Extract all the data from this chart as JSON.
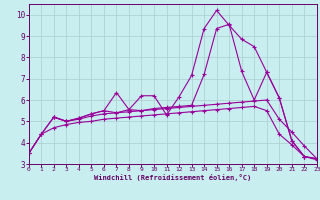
{
  "xlabel": "Windchill (Refroidissement éolien,°C)",
  "bg_color": "#c8eef0",
  "line_color": "#990099",
  "grid_color": "#aacccc",
  "axis_color": "#660066",
  "xlim": [
    0,
    23
  ],
  "ylim": [
    3,
    10.5
  ],
  "xticks": [
    0,
    1,
    2,
    3,
    4,
    5,
    6,
    7,
    8,
    9,
    10,
    11,
    12,
    13,
    14,
    15,
    16,
    17,
    18,
    19,
    20,
    21,
    22,
    23
  ],
  "yticks": [
    3,
    4,
    5,
    6,
    7,
    8,
    9,
    10
  ],
  "lines": [
    {
      "x": [
        0,
        1,
        2,
        3,
        4,
        5,
        6,
        7,
        8,
        9,
        10,
        11,
        12,
        13,
        14,
        15,
        16,
        17,
        18,
        19,
        20,
        21,
        22,
        23
      ],
      "y": [
        3.5,
        4.4,
        4.7,
        4.85,
        4.95,
        5.0,
        5.1,
        5.15,
        5.2,
        5.25,
        5.3,
        5.35,
        5.4,
        5.45,
        5.5,
        5.55,
        5.6,
        5.65,
        5.7,
        5.5,
        4.4,
        3.9,
        3.35,
        3.2
      ]
    },
    {
      "x": [
        0,
        1,
        2,
        3,
        4,
        5,
        6,
        7,
        8,
        9,
        10,
        11,
        12,
        13,
        14,
        15,
        16,
        17,
        18,
        19,
        20,
        21,
        22,
        23
      ],
      "y": [
        3.5,
        4.4,
        5.2,
        5.0,
        5.1,
        5.25,
        5.35,
        5.4,
        5.45,
        5.5,
        5.55,
        5.6,
        5.65,
        5.7,
        5.75,
        5.8,
        5.85,
        5.9,
        5.95,
        6.0,
        5.1,
        4.5,
        3.85,
        3.25
      ]
    },
    {
      "x": [
        0,
        1,
        2,
        3,
        4,
        5,
        6,
        7,
        8,
        9,
        10,
        11,
        12,
        13,
        14,
        15,
        16,
        17,
        18,
        19,
        20,
        21,
        22,
        23
      ],
      "y": [
        3.5,
        4.4,
        5.2,
        5.0,
        5.15,
        5.35,
        5.5,
        6.35,
        5.55,
        6.2,
        6.2,
        5.3,
        6.15,
        7.15,
        9.35,
        10.2,
        9.5,
        8.85,
        8.5,
        7.3,
        6.1,
        4.1,
        3.35,
        3.25
      ]
    },
    {
      "x": [
        2,
        3,
        4,
        5,
        6,
        7,
        8,
        9,
        10,
        11,
        12,
        13,
        14,
        15,
        16,
        17,
        18,
        19,
        20,
        21,
        22,
        23
      ],
      "y": [
        5.2,
        5.0,
        5.15,
        5.35,
        5.5,
        5.4,
        5.55,
        5.5,
        5.6,
        5.65,
        5.7,
        5.75,
        7.2,
        9.35,
        9.55,
        7.35,
        6.0,
        7.3,
        6.1,
        4.1,
        3.35,
        3.25
      ]
    }
  ]
}
